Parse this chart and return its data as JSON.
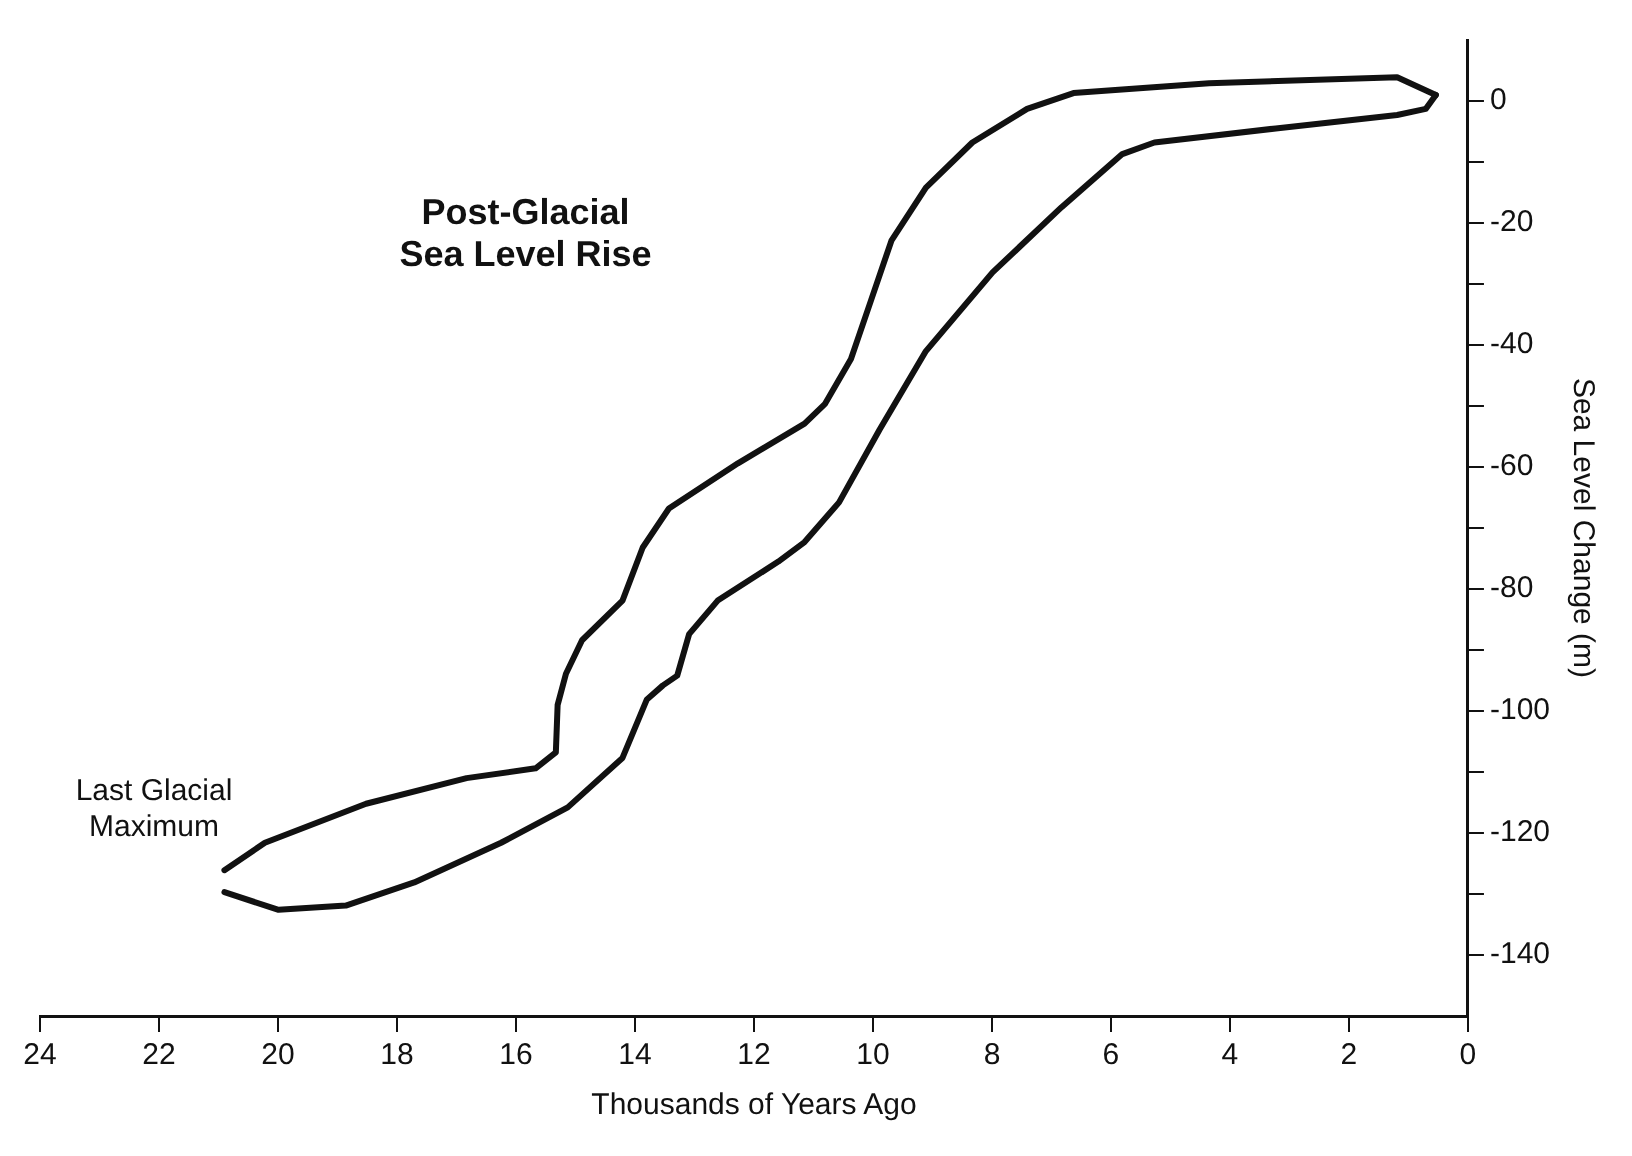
{
  "chart_data": {
    "type": "line",
    "title": "Post-Glacial Sea Level Rise",
    "xlabel": "Thousands of Years Ago",
    "ylabel": "Sea Level Change (m)",
    "annotations": [
      "Last Glacial Maximum"
    ],
    "series": [
      {
        "color": "#111111",
        "x": [
          0.54,
          1.19,
          4.35,
          6.63,
          7.41,
          8.33,
          9.11,
          9.69,
          10.03,
          10.37,
          10.81,
          11.15,
          12.27,
          13.43,
          13.87,
          14.21,
          14.89,
          15.16,
          15.3,
          15.33,
          15.67,
          16.83,
          18.52,
          20.22,
          20.9
        ],
        "values": [
          1,
          3.9,
          2.9,
          1.3,
          -1.3,
          -6.8,
          -14.2,
          -22.9,
          -32.6,
          -42.3,
          -49.7,
          -52.9,
          -59.4,
          -66.8,
          -73.2,
          -81.9,
          -88.4,
          -93.9,
          -99,
          -106.8,
          -109.4,
          -111,
          -115.2,
          -121.6,
          -126.1
        ]
      },
      {
        "color": "#111111",
        "x": [
          20.9,
          19.99,
          18.86,
          17.71,
          16.25,
          15.13,
          14.21,
          13.8,
          13.53,
          13.29,
          13.09,
          12.61,
          11.59,
          11.15,
          10.57,
          9.89,
          9.11,
          7.99,
          6.83,
          5.81,
          5.27,
          3.23,
          1.19,
          0.71,
          0.54
        ],
        "values": [
          -129.7,
          -132.6,
          -131.9,
          -128.1,
          -121.6,
          -115.8,
          -107.7,
          -98.1,
          -95.8,
          -94.2,
          -87.4,
          -81.9,
          -75.5,
          -72.3,
          -65.8,
          -53.9,
          -41,
          -28.1,
          -17.4,
          -8.7,
          -6.8,
          -4.5,
          -2.3,
          -1.3,
          1
        ]
      }
    ],
    "xlim": [
      24,
      0
    ],
    "xticks": [
      24,
      22,
      20,
      18,
      16,
      14,
      12,
      10,
      8,
      6,
      4,
      2,
      0
    ],
    "ylim": [
      -150,
      10
    ],
    "yticks": [
      0,
      {
        "value": -10,
        "label": null
      },
      -20,
      {
        "value": -30,
        "label": null
      },
      -40,
      {
        "value": -50,
        "label": null
      },
      -60,
      {
        "value": -70,
        "label": null
      },
      -80,
      {
        "value": -90,
        "label": null
      },
      -100,
      {
        "value": -110,
        "label": null
      },
      -120,
      {
        "value": -130,
        "label": null
      },
      -140
    ],
    "grid": false,
    "legend": false,
    "marker": "none",
    "line_style": "solid"
  }
}
